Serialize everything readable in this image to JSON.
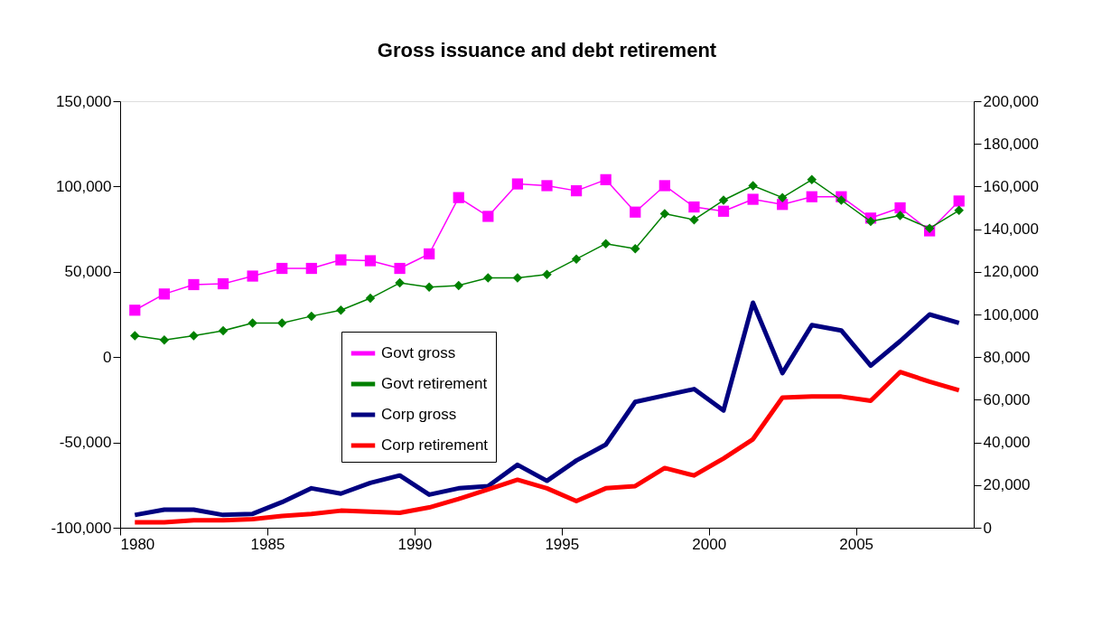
{
  "chart_data": {
    "type": "line",
    "title": "Gross issuance and debt retirement",
    "x": [
      1980.5,
      1981.5,
      1982.5,
      1983.5,
      1984.5,
      1985.5,
      1986.5,
      1987.5,
      1988.5,
      1989.5,
      1990.5,
      1991.5,
      1992.5,
      1993.5,
      1994.5,
      1995.5,
      1996.5,
      1997.5,
      1998.5,
      1999.5,
      2000.5,
      2001.5,
      2002.5,
      2003.5,
      2004.5,
      2005.5,
      2006.5,
      2007.5,
      2008.5
    ],
    "xlim": [
      1980,
      2009
    ],
    "xticks": [
      1980,
      1985,
      1990,
      1995,
      2000,
      2005
    ],
    "ylim": [
      -100000,
      150000
    ],
    "yticks": [
      {
        "value": -100000,
        "label": "-100,000"
      },
      {
        "value": -50000,
        "label": "-50,000"
      },
      0,
      {
        "value": 50000,
        "label": "50,000"
      },
      {
        "value": 100000,
        "label": "100,000"
      },
      {
        "value": 150000,
        "label": "150,000"
      }
    ],
    "y2lim": [
      0,
      200000
    ],
    "y2ticks": [
      0,
      {
        "value": 20000,
        "label": "20,000"
      },
      {
        "value": 40000,
        "label": "40,000"
      },
      {
        "value": 60000,
        "label": "60,000"
      },
      {
        "value": 80000,
        "label": "80,000"
      },
      {
        "value": 100000,
        "label": "100,000"
      },
      {
        "value": 120000,
        "label": "120,000"
      },
      {
        "value": 140000,
        "label": "140,000"
      },
      {
        "value": 160000,
        "label": "160,000"
      },
      {
        "value": 180000,
        "label": "180,000"
      },
      {
        "value": 200000,
        "label": "200,000"
      }
    ],
    "grid": false,
    "legend": "center",
    "series": [
      {
        "name": "Govt gross",
        "color": "#ff00ff",
        "marker": "square",
        "values": [
          27500,
          37000,
          42500,
          43000,
          47500,
          52000,
          52000,
          57000,
          56500,
          52000,
          60500,
          93500,
          82500,
          101500,
          100500,
          97500,
          104000,
          85000,
          100500,
          88000,
          85500,
          92500,
          89500,
          94000,
          94000,
          81500,
          87500,
          74000,
          91500
        ]
      },
      {
        "name": "Govt retirement",
        "color": "#008000",
        "marker": "diamond",
        "values": [
          12500,
          10000,
          12500,
          15500,
          20000,
          20000,
          24000,
          27500,
          34500,
          43500,
          41000,
          42000,
          46500,
          46500,
          48500,
          57500,
          66500,
          63500,
          84000,
          80500,
          92000,
          100500,
          93500,
          104000,
          92000,
          79500,
          83000,
          75500,
          86000
        ]
      },
      {
        "name": "Corp gross",
        "color": "#000080",
        "marker": "none",
        "axis": "y2",
        "values": [
          6000,
          8500,
          8500,
          6000,
          6500,
          12000,
          18500,
          16000,
          21000,
          24500,
          15500,
          18500,
          19500,
          29500,
          22000,
          31500,
          39000,
          59000,
          62000,
          65000,
          55000,
          105500,
          72500,
          95000,
          92500,
          76000,
          87500,
          100000,
          96000
        ]
      },
      {
        "name": "Corp retirement",
        "color": "#ff0000",
        "marker": "none",
        "axis": "y2",
        "values": [
          2500,
          2500,
          3500,
          3500,
          4000,
          5500,
          6500,
          8000,
          7500,
          7000,
          9500,
          13500,
          18000,
          22500,
          18500,
          12500,
          18500,
          19500,
          28000,
          24500,
          32500,
          41500,
          61000,
          61500,
          61500,
          59500,
          73000,
          68500,
          64500
        ]
      }
    ]
  }
}
